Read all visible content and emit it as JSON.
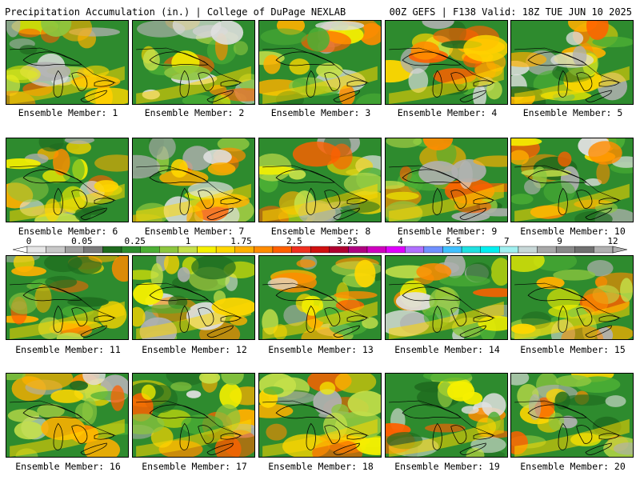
{
  "header": {
    "left_title": "Precipitation Accumulation (in.) | College of DuPage NEXLAB",
    "right_title": "00Z GEFS | F138 Valid: 18Z TUE JUN 10 2025"
  },
  "panels": [
    {
      "label": "Ensemble Member: 1"
    },
    {
      "label": "Ensemble Member: 2"
    },
    {
      "label": "Ensemble Member: 3"
    },
    {
      "label": "Ensemble Member: 4"
    },
    {
      "label": "Ensemble Member: 5"
    },
    {
      "label": "Ensemble Member: 6"
    },
    {
      "label": "Ensemble Member: 7"
    },
    {
      "label": "Ensemble Member: 8"
    },
    {
      "label": "Ensemble Member: 9"
    },
    {
      "label": "Ensemble Member: 10"
    },
    {
      "label": "Ensemble Member: 11"
    },
    {
      "label": "Ensemble Member: 12"
    },
    {
      "label": "Ensemble Member: 13"
    },
    {
      "label": "Ensemble Member: 14"
    },
    {
      "label": "Ensemble Member: 15"
    },
    {
      "label": "Ensemble Member: 16"
    },
    {
      "label": "Ensemble Member: 17"
    },
    {
      "label": "Ensemble Member: 18"
    },
    {
      "label": "Ensemble Member: 19"
    },
    {
      "label": "Ensemble Member: 20"
    }
  ],
  "colorbar": {
    "labels": [
      "0",
      "0.05",
      "0.25",
      "1",
      "1.75",
      "2.5",
      "3.25",
      "4",
      "5.5",
      "7",
      "9",
      "12"
    ],
    "colors": [
      "#e6e6e6",
      "#c8c8c8",
      "#a0a0a0",
      "#7a7a7a",
      "#1f6b1f",
      "#2e8b2e",
      "#4caf35",
      "#8cc63f",
      "#c5e04a",
      "#f5f000",
      "#ffd700",
      "#ffb000",
      "#ff8c00",
      "#ff6000",
      "#f03020",
      "#d01010",
      "#b00030",
      "#b00080",
      "#d000c0",
      "#e000ff",
      "#b070ff",
      "#7090ff",
      "#40c0ff",
      "#20e0e0",
      "#00f0f0",
      "#a0f0f0",
      "#c8d8d8",
      "#a8a8a8",
      "#888888",
      "#707070",
      "#b0b0b0"
    ]
  }
}
